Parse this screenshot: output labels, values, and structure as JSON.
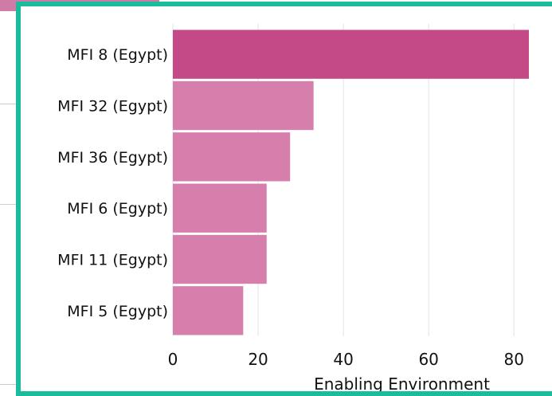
{
  "colors": {
    "frame_border": "#1abc9c",
    "bar_highlight": "#c44a87",
    "bar_default": "#d67fad",
    "gridline": "#e3e3e3",
    "background_accent": "#d07aa8"
  },
  "chart_data": {
    "type": "bar",
    "orientation": "horizontal",
    "categories": [
      "MFI 8 (Egypt)",
      "MFI 32 (Egypt)",
      "MFI 36 (Egypt)",
      "MFI 6 (Egypt)",
      "MFI 11 (Egypt)",
      "MFI 5 (Egypt)"
    ],
    "values": [
      83.5,
      33,
      27.5,
      22,
      22,
      16.5
    ],
    "highlighted_index": 0,
    "xlabel": "Enabling Environment",
    "ylabel": "",
    "xlim": [
      0,
      85
    ],
    "xticks": [
      0,
      20,
      40,
      60,
      80
    ],
    "grid": "vertical"
  }
}
